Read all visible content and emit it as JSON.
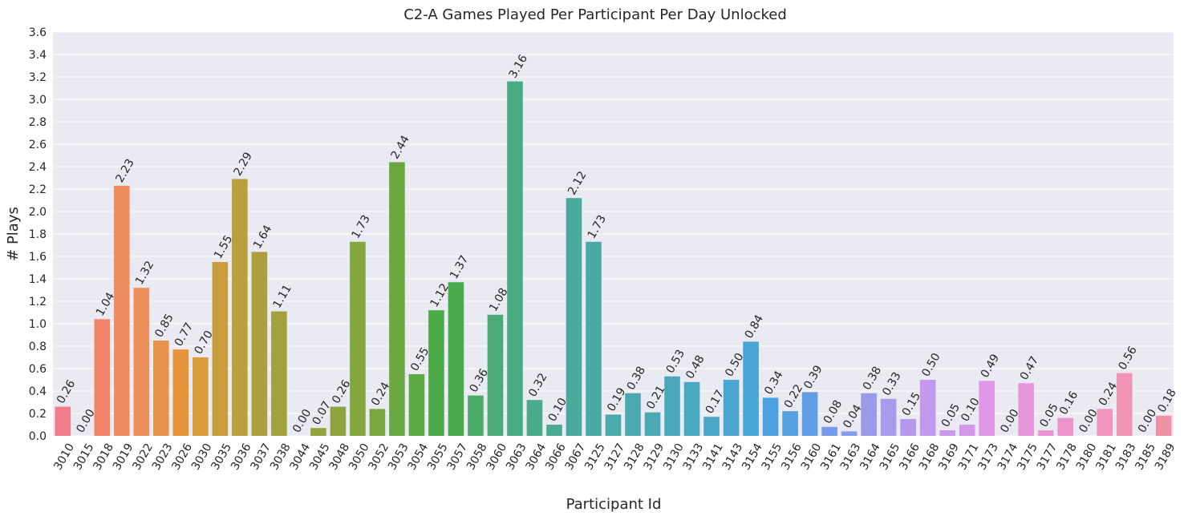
{
  "chart_data": {
    "type": "bar",
    "title": "C2-A Games Played Per Participant Per Day Unlocked",
    "xlabel": "Participant Id",
    "ylabel": "# Plays",
    "ylim": [
      0,
      3.6
    ],
    "yticks": [
      "0.0",
      "0.2",
      "0.4",
      "0.6",
      "0.8",
      "1.0",
      "1.2",
      "1.4",
      "1.6",
      "1.8",
      "2.0",
      "2.2",
      "2.4",
      "2.6",
      "2.8",
      "3.0",
      "3.2",
      "3.4",
      "3.6"
    ],
    "grid": true,
    "background_color": "#eaeaf2",
    "categories": [
      "3010",
      "3015",
      "3018",
      "3019",
      "3022",
      "3023",
      "3026",
      "3030",
      "3035",
      "3036",
      "3037",
      "3038",
      "3044",
      "3045",
      "3048",
      "3050",
      "3052",
      "3053",
      "3054",
      "3055",
      "3057",
      "3058",
      "3060",
      "3063",
      "3064",
      "3066",
      "3067",
      "3125",
      "3127",
      "3128",
      "3129",
      "3130",
      "3133",
      "3141",
      "3143",
      "3154",
      "3155",
      "3156",
      "3160",
      "3161",
      "3163",
      "3164",
      "3165",
      "3166",
      "3168",
      "3169",
      "3171",
      "3173",
      "3174",
      "3175",
      "3177",
      "3178",
      "3180",
      "3181",
      "3183",
      "3185",
      "3189"
    ],
    "values": [
      0.26,
      0.0,
      1.04,
      2.23,
      1.32,
      0.85,
      0.77,
      0.7,
      1.55,
      2.29,
      1.64,
      1.11,
      0.0,
      0.07,
      0.26,
      1.73,
      0.24,
      2.44,
      0.55,
      1.12,
      1.37,
      0.36,
      1.08,
      3.16,
      0.32,
      0.1,
      2.12,
      1.73,
      0.19,
      0.38,
      0.21,
      0.53,
      0.48,
      0.17,
      0.5,
      0.84,
      0.34,
      0.22,
      0.39,
      0.08,
      0.04,
      0.38,
      0.33,
      0.15,
      0.5,
      0.05,
      0.1,
      0.49,
      0.0,
      0.47,
      0.05,
      0.16,
      0.0,
      0.24,
      0.56,
      0.0,
      0.18
    ],
    "data_labels": [
      "0.26",
      "0.00",
      "1.04",
      "2.23",
      "1.32",
      "0.85",
      "0.77",
      "0.70",
      "1.55",
      "2.29",
      "1.64",
      "1.11",
      "0.00",
      "0.07",
      "0.26",
      "1.73",
      "0.24",
      "2.44",
      "0.55",
      "1.12",
      "1.37",
      "0.36",
      "1.08",
      "3.16",
      "0.32",
      "0.10",
      "2.12",
      "1.73",
      "0.19",
      "0.38",
      "0.21",
      "0.53",
      "0.48",
      "0.17",
      "0.50",
      "0.84",
      "0.34",
      "0.22",
      "0.39",
      "0.08",
      "0.04",
      "0.38",
      "0.33",
      "0.15",
      "0.50",
      "0.05",
      "0.10",
      "0.49",
      "0.00",
      "0.47",
      "0.05",
      "0.16",
      "0.00",
      "0.24",
      "0.56",
      "0.00",
      "0.18"
    ],
    "colors": [
      "#f07c8e",
      "#f07e7e",
      "#f0846a",
      "#f08d60",
      "#eb915a",
      "#e99249",
      "#e6943a",
      "#da9b3d",
      "#c89d3f",
      "#ba9f3d",
      "#ad9f3e",
      "#a3a13f",
      "#9ba13e",
      "#95a33f",
      "#8ea33f",
      "#84a63f",
      "#79a740",
      "#6ba841",
      "#5daa42",
      "#4daa49",
      "#4aab4c",
      "#4aab68",
      "#4aab78",
      "#4aab82",
      "#4aab8c",
      "#4aaa95",
      "#4aaa9c",
      "#4aa9a4",
      "#4aa9aa",
      "#4aa9af",
      "#4aa9b5",
      "#4aa8bb",
      "#4aa8c1",
      "#4aa7c8",
      "#4aa6cf",
      "#4aa4d7",
      "#4ba2de",
      "#55a0e2",
      "#629ee5",
      "#749ce8",
      "#889be9",
      "#9a9aeb",
      "#a99aec",
      "#b599ec",
      "#c299ec",
      "#cc98ec",
      "#d696ec",
      "#e096e9",
      "#e696e2",
      "#e896dc",
      "#ea95d5",
      "#ec95cd",
      "#ee95c6",
      "#ef95be",
      "#f094b6",
      "#f092ad",
      "#f091a5"
    ]
  }
}
